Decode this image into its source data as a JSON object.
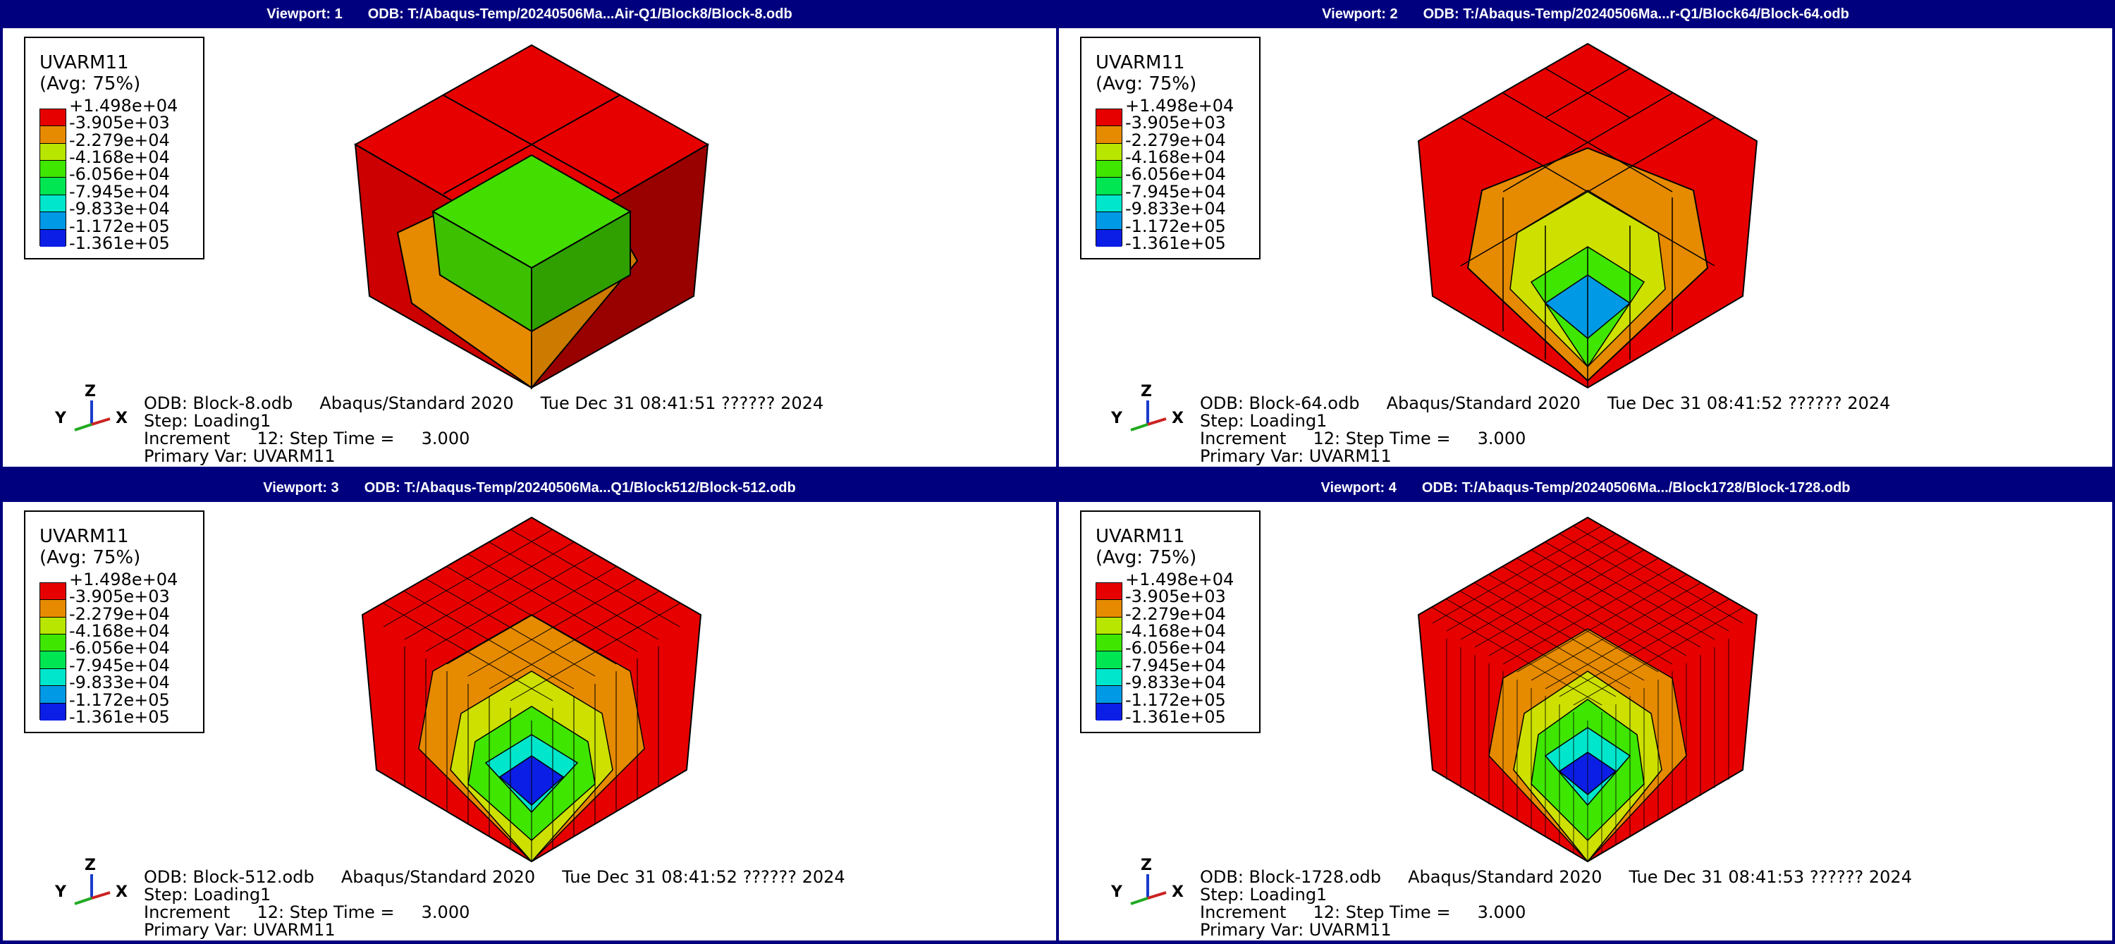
{
  "legend": {
    "title": "UVARM11",
    "avg": "(Avg: 75%)",
    "values": [
      "+1.498e+04",
      "-3.905e+03",
      "-2.279e+04",
      "-4.168e+04",
      "-6.056e+04",
      "-7.945e+04",
      "-9.833e+04",
      "-1.172e+05",
      "-1.361e+05"
    ],
    "colors": [
      "#e60000",
      "#e68a00",
      "#b9e600",
      "#3ee600",
      "#00e653",
      "#00e6cc",
      "#0099e6",
      "#0a1ee6"
    ]
  },
  "triad": {
    "y": "Y",
    "z": "Z",
    "x": "X"
  },
  "common": {
    "step": "Step: Loading1",
    "increment": "Increment     12: Step Time =     3.000",
    "primary": "Primary Var: UVARM11"
  },
  "viewports": [
    {
      "label": "Viewport: 1",
      "odb_path": "ODB: T:/Abaqus-Temp/20240506Ma...Air-Q1/Block8/Block-8.odb",
      "odb_line": "ODB: Block-8.odb     Abaqus/Standard 2020     Tue Dec 31 08:41:51 ?????? 2024"
    },
    {
      "label": "Viewport: 2",
      "odb_path": "ODB: T:/Abaqus-Temp/20240506Ma...r-Q1/Block64/Block-64.odb",
      "odb_line": "ODB: Block-64.odb     Abaqus/Standard 2020     Tue Dec 31 08:41:52 ?????? 2024"
    },
    {
      "label": "Viewport: 3",
      "odb_path": "ODB: T:/Abaqus-Temp/20240506Ma...Q1/Block512/Block-512.odb",
      "odb_line": "ODB: Block-512.odb     Abaqus/Standard 2020     Tue Dec 31 08:41:52 ?????? 2024"
    },
    {
      "label": "Viewport: 4",
      "odb_path": "ODB: T:/Abaqus-Temp/20240506Ma.../Block1728/Block-1728.odb",
      "odb_line": "ODB: Block-1728.odb     Abaqus/Standard 2020     Tue Dec 31 08:41:53 ?????? 2024"
    }
  ]
}
